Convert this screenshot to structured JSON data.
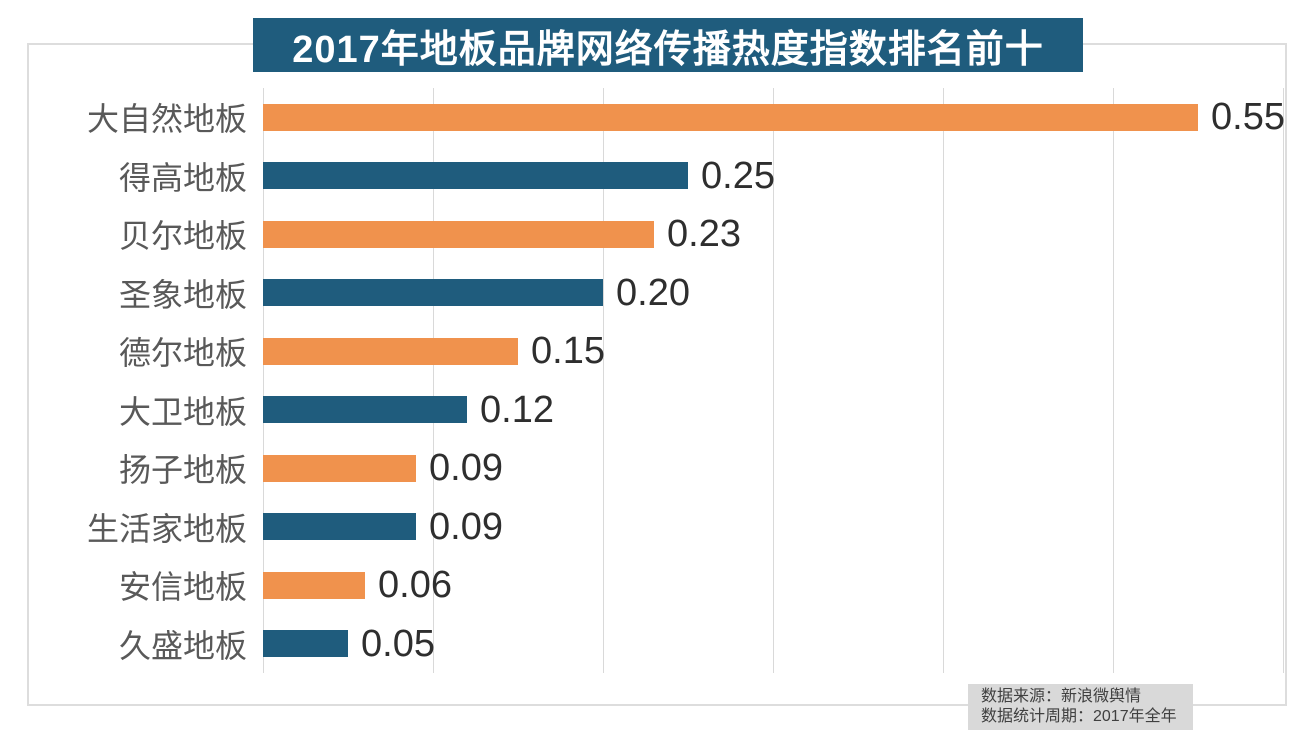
{
  "title": "2017年地板品牌网络传播热度指数排名前十",
  "footer": {
    "source": "数据来源：新浪微舆情",
    "period": "数据统计周期：2017年全年"
  },
  "colors": {
    "banner_bg": "#1f5c7d",
    "bar_orange": "#f0924d",
    "bar_blue": "#1f5c7d",
    "grid": "#d9d9d9",
    "category_text": "#595959",
    "value_text": "#2e2e2e",
    "footer_bg": "#d9d9d9",
    "footer_text": "#404040"
  },
  "chart_data": {
    "type": "bar",
    "orientation": "horizontal",
    "title": "2017年地板品牌网络传播热度指数排名前十",
    "categories": [
      "大自然地板",
      "得高地板",
      "贝尔地板",
      "圣象地板",
      "德尔地板",
      "大卫地板",
      "扬子地板",
      "生活家地板",
      "安信地板",
      "久盛地板"
    ],
    "values": [
      0.55,
      0.25,
      0.23,
      0.2,
      0.15,
      0.12,
      0.09,
      0.09,
      0.06,
      0.05
    ],
    "value_labels": [
      "0.55",
      "0.25",
      "0.23",
      "0.20",
      "0.15",
      "0.12",
      "0.09",
      "0.09",
      "0.06",
      "0.05"
    ],
    "xlabel": "",
    "ylabel": "",
    "xlim": [
      0,
      0.6
    ],
    "gridline_step": 0.1,
    "grid": true,
    "legend": false,
    "bar_color_pattern": [
      "orange",
      "blue"
    ]
  }
}
